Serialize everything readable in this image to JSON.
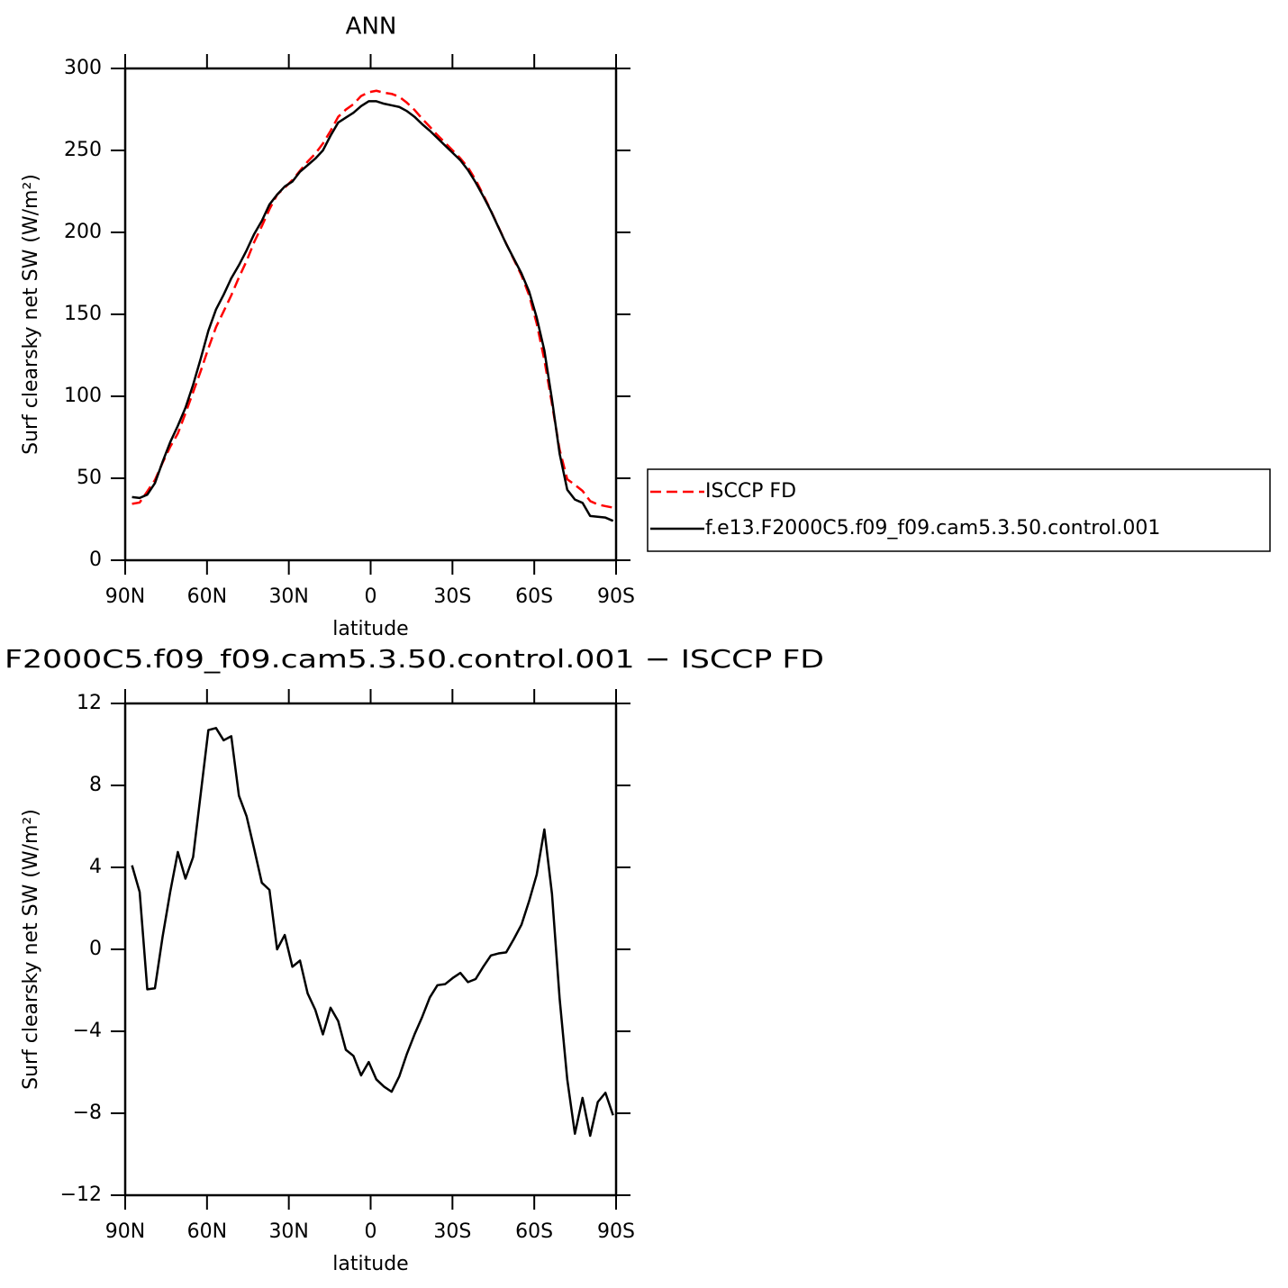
{
  "chart_data": [
    {
      "type": "line",
      "title": "ANN",
      "x_label": "latitude",
      "y_label": "Surf clearsky net SW (W/m²)",
      "xlim": [
        90,
        -90
      ],
      "xticks": [
        {
          "value": 90,
          "label": "90N"
        },
        {
          "value": 60,
          "label": "60N"
        },
        {
          "value": 30,
          "label": "30N"
        },
        {
          "value": 0,
          "label": "0"
        },
        {
          "value": -30,
          "label": "30S"
        },
        {
          "value": -60,
          "label": "60S"
        },
        {
          "value": -90,
          "label": "90S"
        }
      ],
      "ylim": [
        0,
        300
      ],
      "yticks": [
        0,
        50,
        100,
        150,
        200,
        250,
        300
      ],
      "legend": "right",
      "x": [
        87.5,
        84.7,
        81.9,
        79.1,
        76.3,
        73.5,
        70.7,
        67.9,
        65.1,
        62.3,
        59.5,
        56.7,
        53.9,
        51.1,
        48.3,
        45.5,
        42.7,
        39.9,
        37.1,
        34.3,
        31.5,
        28.7,
        25.9,
        23.1,
        20.3,
        17.5,
        14.7,
        11.9,
        9.1,
        6.3,
        3.5,
        0.7,
        -2.1,
        -4.9,
        -7.7,
        -10.5,
        -13.3,
        -16.1,
        -18.9,
        -21.7,
        -24.5,
        -27.3,
        -30.1,
        -32.9,
        -35.7,
        -38.5,
        -41.3,
        -44.1,
        -46.9,
        -49.7,
        -52.5,
        -55.3,
        -58.1,
        -60.9,
        -63.7,
        -66.5,
        -69.3,
        -72.1,
        -74.9,
        -77.7,
        -80.5,
        -83.3,
        -86.1,
        -88.9
      ],
      "series": [
        {
          "name": "ISCCP FD",
          "color": "#ff0000",
          "dash": "dashed",
          "values": [
            34.4,
            35.2,
            42.0,
            48.9,
            59.4,
            69.2,
            77.3,
            89.6,
            102.5,
            115.4,
            129.3,
            142.2,
            151.8,
            161.6,
            172.5,
            182.5,
            194.1,
            203.8,
            214.1,
            223,
            227.3,
            231.9,
            237.6,
            243.2,
            248,
            254.2,
            261.9,
            270.5,
            274.9,
            278.2,
            283.2,
            285.5,
            286.4,
            285.2,
            284.5,
            282.7,
            279.1,
            274.7,
            269.3,
            264.4,
            259.3,
            254.7,
            249.9,
            245.2,
            239.6,
            232,
            222.9,
            213.3,
            203.2,
            193.2,
            183.5,
            173.8,
            161.7,
            144.4,
            122.2,
            95.3,
            67.4,
            49.4,
            46,
            42.3,
            36.1,
            34,
            33,
            32.1
          ]
        },
        {
          "name": "f.e13.F2000C5.f09_f09.cam5.3.50.control.001",
          "color": "#000000",
          "dash": "solid",
          "values": [
            38.5,
            38,
            40,
            47,
            60,
            72,
            82,
            93,
            107,
            123,
            140,
            153,
            162,
            172,
            180,
            189,
            199,
            207,
            217,
            223,
            228,
            231,
            237,
            241,
            245,
            250,
            259,
            267,
            270,
            273,
            277,
            280,
            280,
            278.5,
            277.5,
            276.5,
            274,
            270.5,
            266,
            262,
            257.5,
            253,
            248.5,
            244,
            238,
            230.5,
            222,
            213,
            203,
            193,
            184,
            175,
            164,
            148,
            128,
            98,
            65,
            43,
            37,
            35,
            27,
            26.5,
            26,
            24
          ]
        }
      ]
    },
    {
      "type": "line",
      "title": "F2000C5.f09_f09.cam5.3.50.control.001 − ISCCP FD",
      "x_label": "latitude",
      "y_label": "Surf clearsky net SW (W/m²)",
      "xlim": [
        90,
        -90
      ],
      "xticks": [
        {
          "value": 90,
          "label": "90N"
        },
        {
          "value": 60,
          "label": "60N"
        },
        {
          "value": 30,
          "label": "30N"
        },
        {
          "value": 0,
          "label": "0"
        },
        {
          "value": -30,
          "label": "30S"
        },
        {
          "value": -60,
          "label": "60S"
        },
        {
          "value": -90,
          "label": "90S"
        }
      ],
      "ylim": [
        -12,
        12
      ],
      "yticks": [
        {
          "value": -12,
          "label": "−12"
        },
        {
          "value": -8,
          "label": "−8"
        },
        {
          "value": -4,
          "label": "−4"
        },
        0,
        4,
        8,
        12
      ],
      "x": [
        87.5,
        84.7,
        81.9,
        79.1,
        76.3,
        73.5,
        70.7,
        67.9,
        65.1,
        62.3,
        59.5,
        56.7,
        53.9,
        51.1,
        48.3,
        45.5,
        42.7,
        39.9,
        37.1,
        34.3,
        31.5,
        28.7,
        25.9,
        23.1,
        20.3,
        17.5,
        14.7,
        11.9,
        9.1,
        6.3,
        3.5,
        0.7,
        -2.1,
        -4.9,
        -7.7,
        -10.5,
        -13.3,
        -16.1,
        -18.9,
        -21.7,
        -24.5,
        -27.3,
        -30.1,
        -32.9,
        -35.7,
        -38.5,
        -41.3,
        -44.1,
        -46.9,
        -49.7,
        -52.5,
        -55.3,
        -58.1,
        -60.9,
        -63.7,
        -66.5,
        -69.3,
        -72.1,
        -74.9,
        -77.7,
        -80.5,
        -83.3,
        -86.1,
        -88.9
      ],
      "color": "#000000",
      "values": [
        4.1,
        2.8,
        -1.95,
        -1.9,
        0.6,
        2.8,
        4.75,
        3.45,
        4.5,
        7.6,
        10.7,
        10.8,
        10.2,
        10.4,
        7.5,
        6.5,
        4.9,
        3.25,
        2.9,
        0,
        0.7,
        -0.85,
        -0.55,
        -2.15,
        -2.95,
        -4.15,
        -2.85,
        -3.5,
        -4.9,
        -5.2,
        -6.15,
        -5.5,
        -6.35,
        -6.7,
        -6.95,
        -6.2,
        -5.1,
        -4.15,
        -3.3,
        -2.35,
        -1.75,
        -1.7,
        -1.4,
        -1.15,
        -1.6,
        -1.45,
        -0.85,
        -0.3,
        -0.2,
        -0.15,
        0.5,
        1.2,
        2.35,
        3.65,
        5.85,
        2.7,
        -2.4,
        -6.35,
        -9.0,
        -7.25,
        -9.1,
        -7.45,
        -7.0,
        -8.1
      ]
    }
  ]
}
